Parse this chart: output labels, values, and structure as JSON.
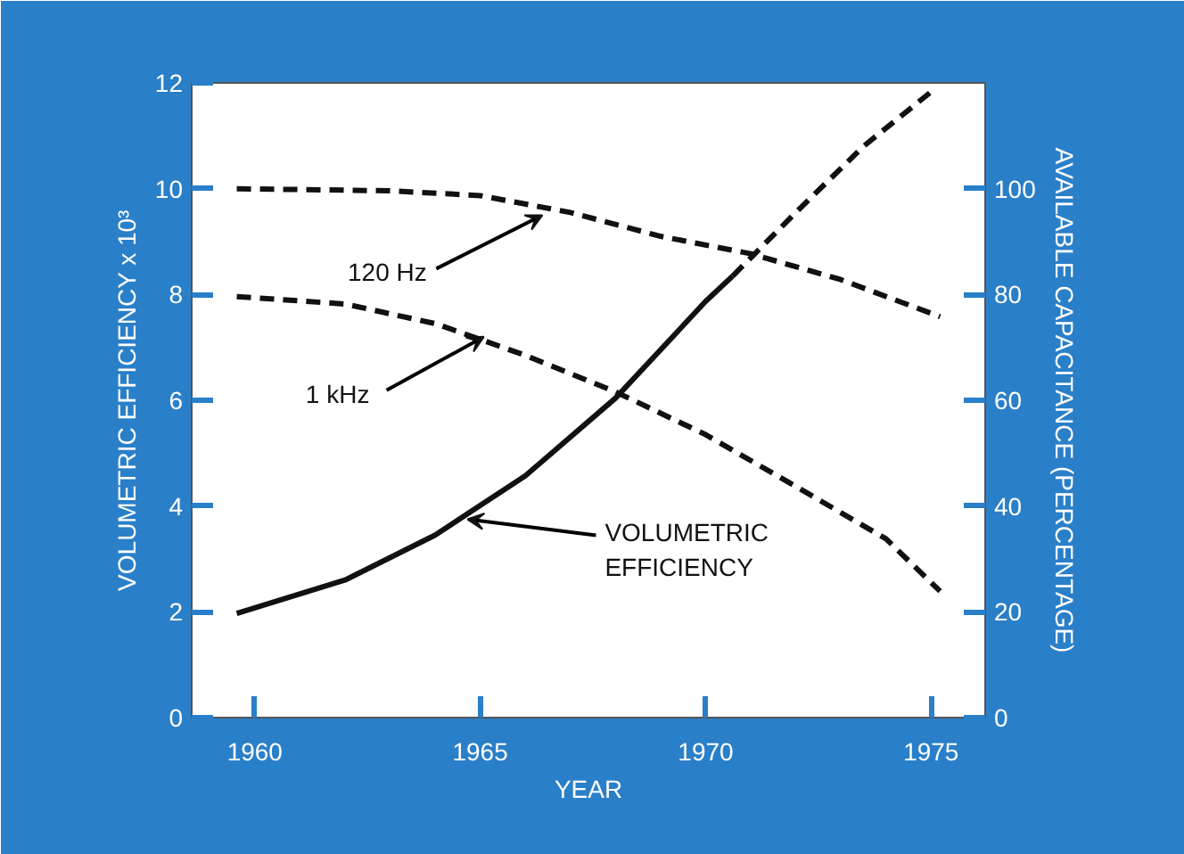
{
  "chart_data": {
    "type": "line",
    "xlabel": "YEAR",
    "ylabel": "VOLUMETRIC EFFICIENCY x 10³",
    "y2label": "AVAILABLE CAPACITANCE (PERCENTAGE)",
    "xlim": [
      1958.6,
      1976.2
    ],
    "xticks": [
      1960,
      1965,
      1970,
      1975
    ],
    "ylim": [
      0,
      12
    ],
    "yticks": [
      0,
      2,
      4,
      6,
      8,
      10,
      12
    ],
    "y2lim": [
      0,
      120
    ],
    "y2ticks": [
      0,
      20,
      40,
      60,
      80,
      100
    ],
    "series": [
      {
        "color": "#111111",
        "line_style": "solid",
        "x": [
          1959.6,
          1962,
          1964,
          1966,
          1968,
          1970,
          1970.6
        ],
        "values": [
          1.97,
          2.6,
          3.45,
          4.57,
          6.04,
          7.87,
          8.35
        ]
      },
      {
        "color": "#111111",
        "line_style": "dashed",
        "x": [
          1970.6,
          1972,
          1973.5,
          1975.1
        ],
        "values": [
          8.35,
          9.55,
          10.8,
          11.9
        ]
      },
      {
        "color": "#111111",
        "line_style": "dashed",
        "axis": "y2",
        "x": [
          1959.6,
          1963,
          1965,
          1967,
          1969,
          1971,
          1973,
          1975.2
        ],
        "values": [
          100,
          99.6,
          98.7,
          95.5,
          91,
          87.7,
          82.8,
          75.8
        ]
      },
      {
        "color": "#111111",
        "line_style": "dashed",
        "axis": "y2",
        "x": [
          1959.6,
          1962,
          1964,
          1966,
          1968,
          1970,
          1972,
          1974,
          1975.2
        ],
        "values": [
          79.6,
          78.2,
          74.5,
          68.5,
          61.6,
          53.5,
          43.7,
          33.8,
          23.9
        ]
      }
    ],
    "annotations": [
      {
        "text": "120 Hz",
        "x": 1966.3,
        "y": 9.6
      },
      {
        "text": "1 kHz",
        "x": 1965,
        "y": 7.3
      },
      {
        "text": "VOLUMETRIC\nEFFICIENCY",
        "x": 1964.6,
        "y": 3.85
      }
    ]
  }
}
